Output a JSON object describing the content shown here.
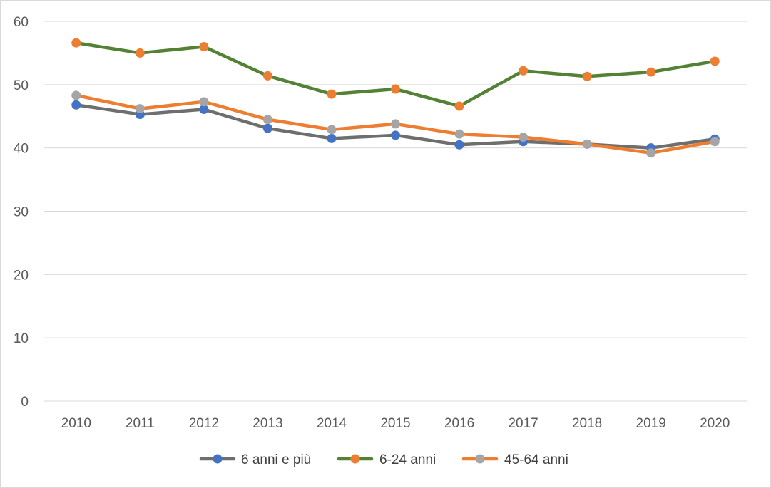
{
  "chart_data": {
    "type": "line",
    "x": [
      "2010",
      "2011",
      "2012",
      "2013",
      "2014",
      "2015",
      "2016",
      "2017",
      "2018",
      "2019",
      "2020"
    ],
    "ylim": [
      0,
      60
    ],
    "yticks": [
      "0",
      "10",
      "20",
      "30",
      "40",
      "50",
      "60"
    ],
    "grid": "horizontal",
    "legend_position": "bottom",
    "series": [
      {
        "name": "6 anni e più",
        "line_color": "#6e6e6e",
        "marker_color": "#4472c4",
        "values": [
          46.8,
          45.3,
          46.1,
          43.1,
          41.5,
          42.0,
          40.5,
          41.0,
          40.6,
          40.0,
          41.4
        ]
      },
      {
        "name": "6-24 anni",
        "line_color": "#548235",
        "marker_color": "#ed7d31",
        "values": [
          56.6,
          55.0,
          56.0,
          51.4,
          48.5,
          49.3,
          46.6,
          52.2,
          51.3,
          52.0,
          53.7
        ]
      },
      {
        "name": "45-64 anni",
        "line_color": "#ed7d31",
        "marker_color": "#a5a5a5",
        "values": [
          48.3,
          46.2,
          47.3,
          44.5,
          42.9,
          43.8,
          42.2,
          41.7,
          40.6,
          39.2,
          41.0
        ]
      }
    ]
  }
}
